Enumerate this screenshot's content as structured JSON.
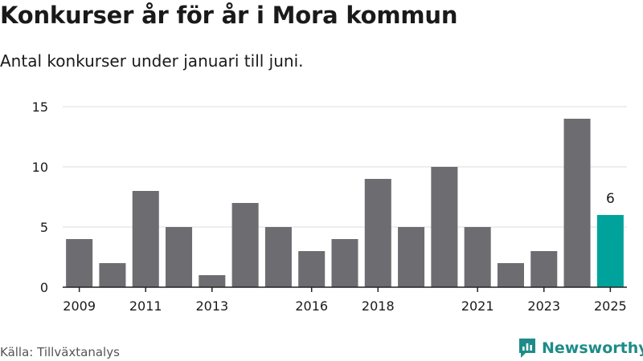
{
  "title": "Konkurser år för år i Mora kommun",
  "subtitle": "Antal konkurser under januari till juni.",
  "source": "Källa: Tillväxtanalys",
  "brand": "Newsworthy",
  "colors": {
    "bar": "#6d6c71",
    "highlight": "#00a39b",
    "grid": "#dddddd",
    "axis": "#222222",
    "brand": "#1d8c89"
  },
  "chart_data": {
    "type": "bar",
    "title": "Konkurser år för år i Mora kommun",
    "subtitle": "Antal konkurser under januari till juni.",
    "categories": [
      2009,
      2010,
      2011,
      2012,
      2013,
      2014,
      2015,
      2016,
      2017,
      2018,
      2019,
      2020,
      2021,
      2022,
      2023,
      2024,
      2025
    ],
    "values": [
      4,
      2,
      8,
      5,
      1,
      7,
      5,
      3,
      4,
      9,
      5,
      10,
      5,
      2,
      3,
      14,
      6
    ],
    "x_tick_labels": [
      "2009",
      "2011",
      "2013",
      "2016",
      "2018",
      "2021",
      "2023",
      "2025"
    ],
    "y_ticks": [
      0,
      5,
      10,
      15
    ],
    "ylim": [
      0,
      15
    ],
    "highlight": {
      "category": 2025,
      "label": "6"
    },
    "grid": true,
    "legend": false
  }
}
